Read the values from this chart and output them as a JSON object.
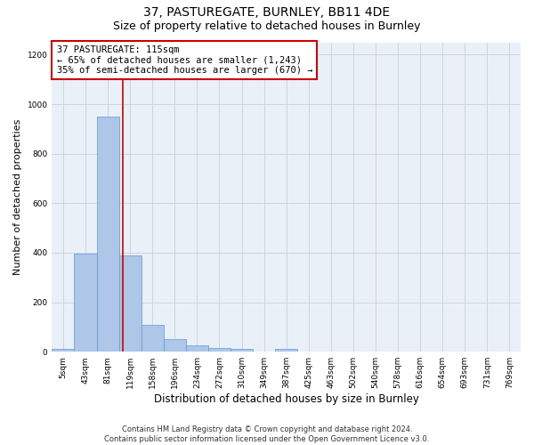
{
  "title": "37, PASTUREGATE, BURNLEY, BB11 4DE",
  "subtitle": "Size of property relative to detached houses in Burnley",
  "xlabel": "Distribution of detached houses by size in Burnley",
  "ylabel": "Number of detached properties",
  "categories": [
    "5sqm",
    "43sqm",
    "81sqm",
    "119sqm",
    "158sqm",
    "196sqm",
    "234sqm",
    "272sqm",
    "310sqm",
    "349sqm",
    "387sqm",
    "425sqm",
    "463sqm",
    "502sqm",
    "540sqm",
    "578sqm",
    "616sqm",
    "654sqm",
    "693sqm",
    "731sqm",
    "769sqm"
  ],
  "values": [
    13,
    395,
    950,
    390,
    107,
    52,
    25,
    14,
    13,
    0,
    10,
    0,
    0,
    0,
    0,
    0,
    0,
    0,
    0,
    0,
    0
  ],
  "bar_color": "#aec6e8",
  "bar_edge_color": "#5a9fd4",
  "background_color": "#ffffff",
  "plot_bg_color": "#eaf0f8",
  "grid_color": "#c8d0dc",
  "annotation_box_text": "37 PASTUREGATE: 115sqm\n← 65% of detached houses are smaller (1,243)\n35% of semi-detached houses are larger (670) →",
  "annotation_box_color": "#cc0000",
  "vline_x_index": 2.67,
  "vline_color": "#cc0000",
  "ylim": [
    0,
    1250
  ],
  "footnote": "Contains HM Land Registry data © Crown copyright and database right 2024.\nContains public sector information licensed under the Open Government Licence v3.0.",
  "title_fontsize": 10,
  "subtitle_fontsize": 9,
  "xlabel_fontsize": 8.5,
  "ylabel_fontsize": 8,
  "tick_fontsize": 6.5,
  "annotation_fontsize": 7.5,
  "footnote_fontsize": 6
}
